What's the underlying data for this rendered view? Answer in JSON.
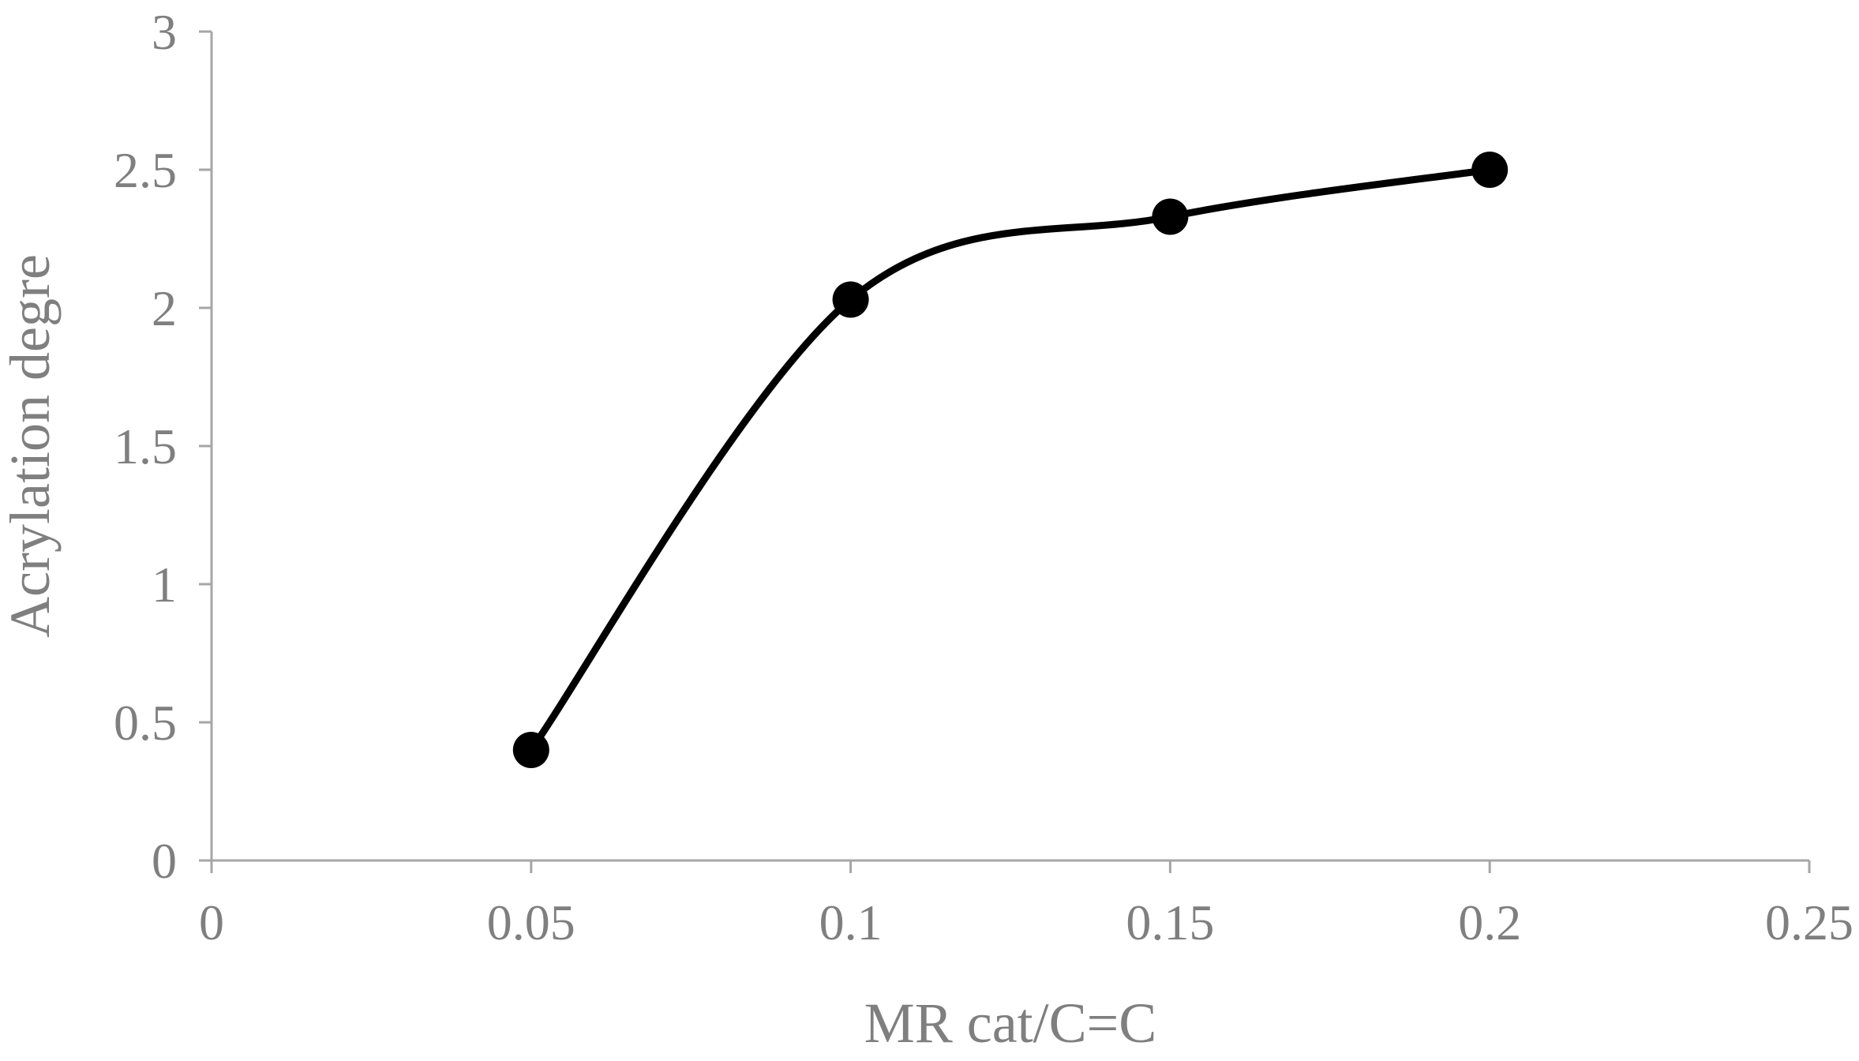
{
  "chart_data": {
    "type": "scatter",
    "title": "",
    "xlabel": "MR cat/C=C",
    "ylabel": "Acrylation degre",
    "xlim": [
      0,
      0.25
    ],
    "ylim": [
      0,
      3
    ],
    "x_ticks": [
      "0",
      "0.05",
      "0.1",
      "0.15",
      "0.2",
      "0.25"
    ],
    "y_ticks": [
      "0",
      "0.5",
      "1",
      "1.5",
      "2",
      "2.5",
      "3"
    ],
    "grid": false,
    "legend": "none",
    "line_style": "smoothed",
    "series": [
      {
        "color": "#000000",
        "x": [
          0.05,
          0.1,
          0.15,
          0.2
        ],
        "y": [
          0.4,
          2.03,
          2.33,
          2.5
        ]
      }
    ]
  }
}
